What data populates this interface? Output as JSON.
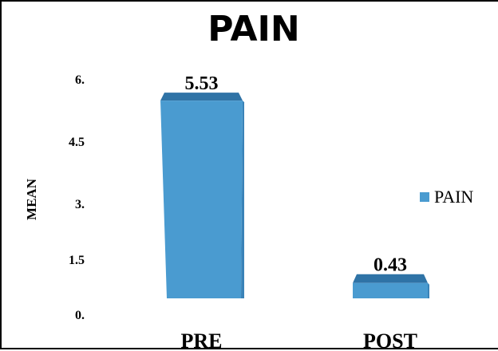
{
  "chart_data": {
    "type": "bar",
    "title": "PAIN",
    "xlabel": "",
    "ylabel": "MEAN",
    "categories": [
      "PRE",
      "POST"
    ],
    "series": [
      {
        "name": "PAIN",
        "values": [
          5.53,
          0.43
        ],
        "data_labels": [
          "5.53",
          "0.43"
        ]
      }
    ],
    "yticks": [
      "0.",
      "1.5",
      "3.",
      "4.5",
      "6."
    ],
    "ytick_values": [
      0,
      1.5,
      3,
      4.5,
      6
    ],
    "ylim": [
      0,
      6
    ],
    "grid": false,
    "legend_position": "right",
    "bar_color": "#4a9bd0",
    "bar_top_color": "#2f73a6",
    "bar_side_color": "#3a83b8"
  }
}
